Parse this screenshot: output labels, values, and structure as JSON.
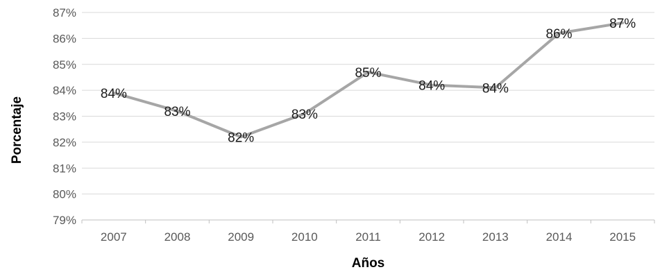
{
  "chart_data": {
    "type": "line",
    "title": "",
    "xlabel": "Años",
    "ylabel": "Porcentaje",
    "categories": [
      "2007",
      "2008",
      "2009",
      "2010",
      "2011",
      "2012",
      "2013",
      "2014",
      "2015"
    ],
    "values": [
      83.9,
      83.2,
      82.2,
      83.1,
      84.7,
      84.2,
      84.1,
      86.2,
      86.6
    ],
    "data_labels": [
      "84%",
      "83%",
      "82%",
      "83%",
      "85%",
      "84%",
      "84%",
      "86%",
      "87%"
    ],
    "y_tick_labels": [
      "79%",
      "80%",
      "81%",
      "82%",
      "83%",
      "84%",
      "85%",
      "86%",
      "87%"
    ],
    "ylim": [
      79,
      87
    ],
    "grid": true,
    "legend": "none",
    "line_color": "#a6a6a6"
  }
}
